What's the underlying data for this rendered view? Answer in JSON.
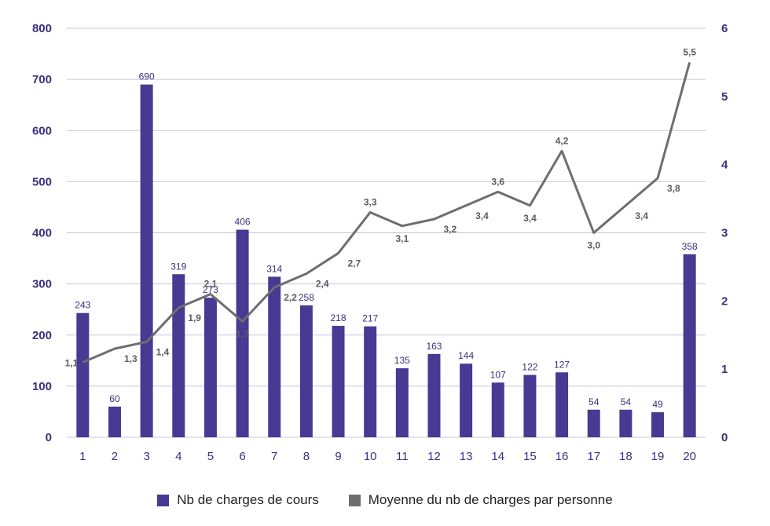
{
  "chart_data": {
    "type": "bar",
    "categories": [
      "1",
      "2",
      "3",
      "4",
      "5",
      "6",
      "7",
      "8",
      "9",
      "10",
      "11",
      "12",
      "13",
      "14",
      "15",
      "16",
      "17",
      "18",
      "19",
      "20"
    ],
    "series": [
      {
        "name": "Nb de charges de cours",
        "type": "bar",
        "axis": "left",
        "color": "#463a92",
        "values": [
          243,
          60,
          690,
          319,
          273,
          406,
          314,
          258,
          218,
          217,
          135,
          163,
          144,
          107,
          122,
          127,
          54,
          54,
          49,
          358
        ],
        "labels": [
          "243",
          "60",
          "690",
          "319",
          "273",
          "406",
          "314",
          "258",
          "218",
          "217",
          "135",
          "163",
          "144",
          "107",
          "122",
          "127",
          "54",
          "54",
          "49",
          "358"
        ]
      },
      {
        "name": "Moyenne du nb de charges par personne",
        "type": "line",
        "axis": "right",
        "color": "#6e6e70",
        "values": [
          1.1,
          1.3,
          1.4,
          1.9,
          2.1,
          1.7,
          2.2,
          2.4,
          2.7,
          3.3,
          3.1,
          3.2,
          3.4,
          3.6,
          3.4,
          4.2,
          3.0,
          3.4,
          3.8,
          5.5
        ],
        "labels": [
          "1,1",
          "1,3",
          "1,4",
          "1,9",
          "2,1",
          "1,7",
          "2,2",
          "2,4",
          "2,7",
          "3,3",
          "3,1",
          "3,2",
          "3,4",
          "3,6",
          "3,4",
          "4,2",
          "3,0",
          "3,4",
          "3,8",
          "5,5"
        ]
      }
    ],
    "y_left": {
      "lim": [
        0,
        800
      ],
      "ticks": [
        "0",
        "100",
        "200",
        "300",
        "400",
        "500",
        "600",
        "700",
        "800"
      ]
    },
    "y_right": {
      "lim": [
        0,
        6
      ],
      "ticks": [
        "0",
        "1",
        "2",
        "3",
        "4",
        "5",
        "6"
      ]
    },
    "grid": true,
    "legend_position": "bottom-center",
    "title": "",
    "xlabel": "",
    "ylabel": ""
  },
  "legend": {
    "items": [
      {
        "label": "Nb de charges de cours",
        "color": "#463a92"
      },
      {
        "label": "Moyenne du nb de charges par personne",
        "color": "#6e6e70"
      }
    ]
  }
}
